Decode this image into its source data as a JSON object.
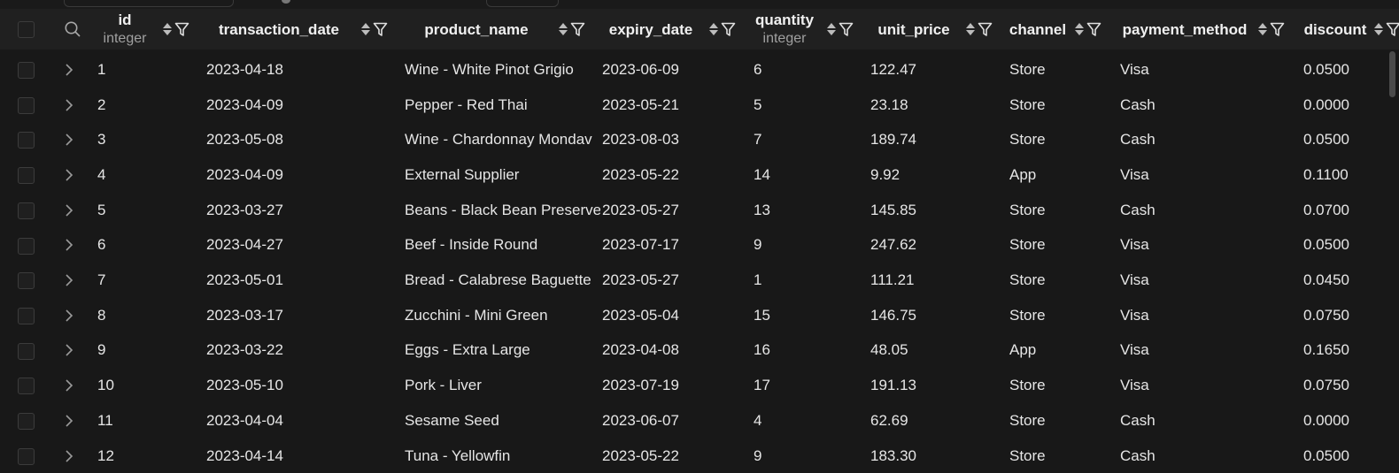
{
  "columns": [
    {
      "label": "id",
      "type": "integer"
    },
    {
      "label": "transaction_date",
      "type": ""
    },
    {
      "label": "product_name",
      "type": ""
    },
    {
      "label": "expiry_date",
      "type": ""
    },
    {
      "label": "quantity",
      "type": "integer"
    },
    {
      "label": "unit_price",
      "type": ""
    },
    {
      "label": "channel",
      "type": ""
    },
    {
      "label": "payment_method",
      "type": ""
    },
    {
      "label": "discount",
      "type": ""
    }
  ],
  "rows": [
    [
      "1",
      "2023-04-18",
      "Wine - White Pinot Grigio",
      "2023-06-09",
      "6",
      "122.47",
      "Store",
      "Visa",
      "0.0500"
    ],
    [
      "2",
      "2023-04-09",
      "Pepper - Red Thai",
      "2023-05-21",
      "5",
      "23.18",
      "Store",
      "Cash",
      "0.0000"
    ],
    [
      "3",
      "2023-05-08",
      "Wine - Chardonnay Mondav",
      "2023-08-03",
      "7",
      "189.74",
      "Store",
      "Cash",
      "0.0500"
    ],
    [
      "4",
      "2023-04-09",
      "External Supplier",
      "2023-05-22",
      "14",
      "9.92",
      "App",
      "Visa",
      "0.1100"
    ],
    [
      "5",
      "2023-03-27",
      "Beans - Black Bean Preserve",
      "2023-05-27",
      "13",
      "145.85",
      "Store",
      "Cash",
      "0.0700"
    ],
    [
      "6",
      "2023-04-27",
      "Beef - Inside Round",
      "2023-07-17",
      "9",
      "247.62",
      "Store",
      "Visa",
      "0.0500"
    ],
    [
      "7",
      "2023-05-01",
      "Bread - Calabrese Baguette",
      "2023-05-27",
      "1",
      "111.21",
      "Store",
      "Visa",
      "0.0450"
    ],
    [
      "8",
      "2023-03-17",
      "Zucchini - Mini Green",
      "2023-05-04",
      "15",
      "146.75",
      "Store",
      "Visa",
      "0.0750"
    ],
    [
      "9",
      "2023-03-22",
      "Eggs - Extra Large",
      "2023-04-08",
      "16",
      "48.05",
      "App",
      "Visa",
      "0.1650"
    ],
    [
      "10",
      "2023-05-10",
      "Pork - Liver",
      "2023-07-19",
      "17",
      "191.13",
      "Store",
      "Visa",
      "0.0750"
    ],
    [
      "11",
      "2023-04-04",
      "Sesame Seed",
      "2023-06-07",
      "4",
      "62.69",
      "Store",
      "Cash",
      "0.0000"
    ],
    [
      "12",
      "2023-04-14",
      "Tuna - Yellowfin",
      "2023-05-22",
      "9",
      "183.30",
      "Store",
      "Cash",
      "0.0500"
    ]
  ],
  "icons": {
    "search": "search-icon",
    "sort": "sort-arrows-icon",
    "filter": "filter-icon",
    "expand": "chevron-right-icon"
  }
}
